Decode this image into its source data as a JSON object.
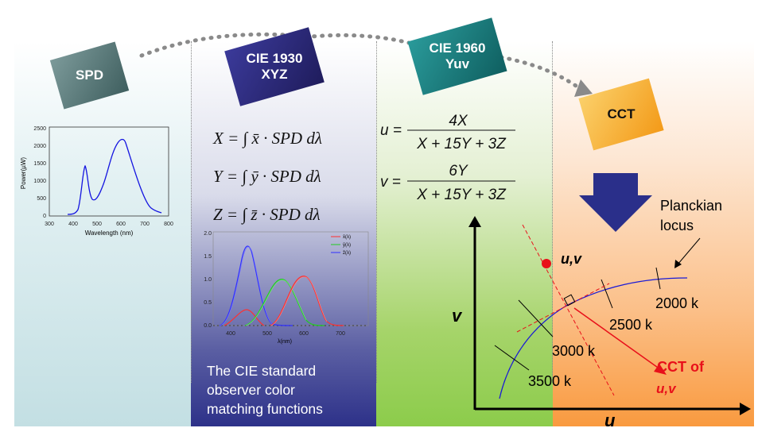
{
  "boxes": {
    "spd": "SPD",
    "cie1930_line1": "CIE 1930",
    "cie1930_line2": "XYZ",
    "cie1960_line1": "CIE 1960",
    "cie1960_line2": "Yuv",
    "cct": "CCT"
  },
  "spd_chart": {
    "xlabel": "Wavelength (nm)",
    "ylabel": "Power(µW)",
    "x_ticks": [
      "300",
      "400",
      "500",
      "600",
      "700",
      "800"
    ],
    "y_ticks": [
      "0",
      "500",
      "1000",
      "1500",
      "2000",
      "2500"
    ]
  },
  "equations_xyz": {
    "x": "X = ∫ x̄ · SPD dλ",
    "y": "Y = ∫ ȳ · SPD dλ",
    "z": "Z = ∫ z̄ · SPD dλ"
  },
  "cmf_chart": {
    "xlabel": "λ(nm)",
    "x_ticks": [
      "400",
      "500",
      "600",
      "700"
    ],
    "y_ticks": [
      "0.0",
      "0.5",
      "1.0",
      "1.5",
      "2.0"
    ],
    "legend": [
      "x̄(λ)",
      "ȳ(λ)",
      "z̄(λ)"
    ]
  },
  "cmf_caption": [
    "The CIE standard",
    "observer color",
    "matching functions"
  ],
  "equations_uv": {
    "u_lhs": "u =",
    "u_num": "4X",
    "u_den": "X + 15Y + 3Z",
    "v_lhs": "v =",
    "v_num": "6Y",
    "v_den": "X + 15Y + 3Z"
  },
  "locus_diagram": {
    "v_axis": "v",
    "u_axis": "u",
    "point_label": "u,v",
    "planckian_label": [
      "Planckian",
      "locus"
    ],
    "temps": [
      "2000 k",
      "2500 k",
      "3000 k",
      "3500 k"
    ],
    "cct_label_line1": "CCT of",
    "cct_label_line2": "u,v"
  },
  "colors": {
    "spd_box": "#3f5f5f",
    "cie1930_box": "#2e2a7c",
    "cie1960_box": "#1a7777",
    "cct_box": "#f7a428",
    "arrow_down": "#2a2f8a",
    "locus": "#1a1ad6",
    "cct_red": "#e8101a"
  }
}
